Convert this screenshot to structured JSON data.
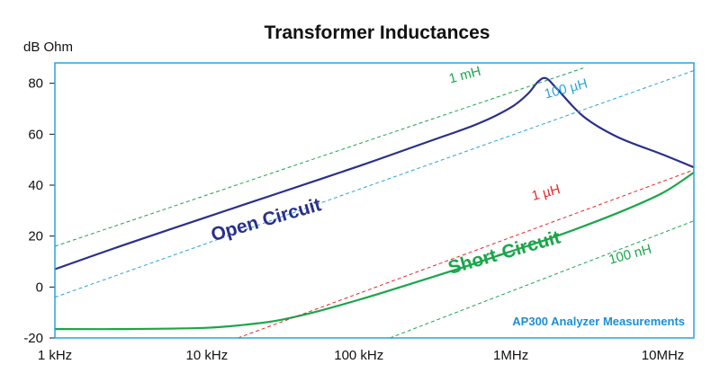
{
  "chart_data": {
    "type": "line",
    "title": "Transformer Inductances",
    "ylabel": "dB Ohm",
    "xscale": "log",
    "xlim": [
      1000,
      16000000
    ],
    "ylim": [
      -20,
      88
    ],
    "yticks": [
      -20,
      0,
      20,
      40,
      60,
      80
    ],
    "ytick_labels": [
      "-20",
      "0",
      "20",
      "40",
      "60",
      "80"
    ],
    "xticks": [
      1000,
      10000,
      100000,
      1000000,
      10000000
    ],
    "xtick_labels": [
      "1 kHz",
      "10 kHz",
      "100 kHz",
      "1MHz",
      "10MHz"
    ],
    "grid": false,
    "frame_color": "#29a3dc",
    "note": {
      "text": "AP300 Analyzer Measurements",
      "color": "#1a8fd6"
    },
    "series": [
      {
        "name": "Open Circuit",
        "style": "solid",
        "color": "#2b2f8a",
        "x": [
          1000,
          3000,
          10000,
          30000,
          100000,
          300000,
          600000,
          1000000,
          1300000,
          1500000,
          1700000,
          2000000,
          3000000,
          5000000,
          10000000,
          16000000
        ],
        "y": [
          7,
          17,
          27.5,
          37,
          47.5,
          57.5,
          64,
          70.5,
          76,
          80.5,
          82,
          78,
          67,
          59,
          52,
          47
        ],
        "label_color": "#2b2f8a"
      },
      {
        "name": "Short-Circuit",
        "style": "solid",
        "color": "#1aa64a",
        "x": [
          1000,
          3000,
          10000,
          20000,
          30000,
          50000,
          100000,
          200000,
          500000,
          1000000,
          2000000,
          5000000,
          10000000,
          16000000
        ],
        "y": [
          -16.5,
          -16.5,
          -16,
          -14.5,
          -13,
          -10,
          -5,
          0.5,
          8,
          14,
          20,
          29,
          37,
          45
        ],
        "label_color": "#1aa64a"
      },
      {
        "name": "1 mH",
        "style": "dashed",
        "color": "#1aa64a",
        "x": [
          1000,
          3000000
        ],
        "y": [
          16,
          86
        ],
        "label_color": "#1aa64a"
      },
      {
        "name": "100 µH",
        "style": "dashed",
        "color": "#29a3dc",
        "x": [
          1000,
          16000000
        ],
        "y": [
          -4,
          85
        ],
        "label_color": "#29a3dc"
      },
      {
        "name": "1 µH",
        "style": "dashed",
        "color": "#e8262a",
        "x": [
          16000,
          16000000
        ],
        "y": [
          -20,
          46
        ],
        "label_color": "#e8262a"
      },
      {
        "name": "100 nH",
        "style": "dashed",
        "color": "#1aa64a",
        "x": [
          160000,
          16000000
        ],
        "y": [
          -20,
          26
        ],
        "label_color": "#1aa64a"
      }
    ]
  }
}
